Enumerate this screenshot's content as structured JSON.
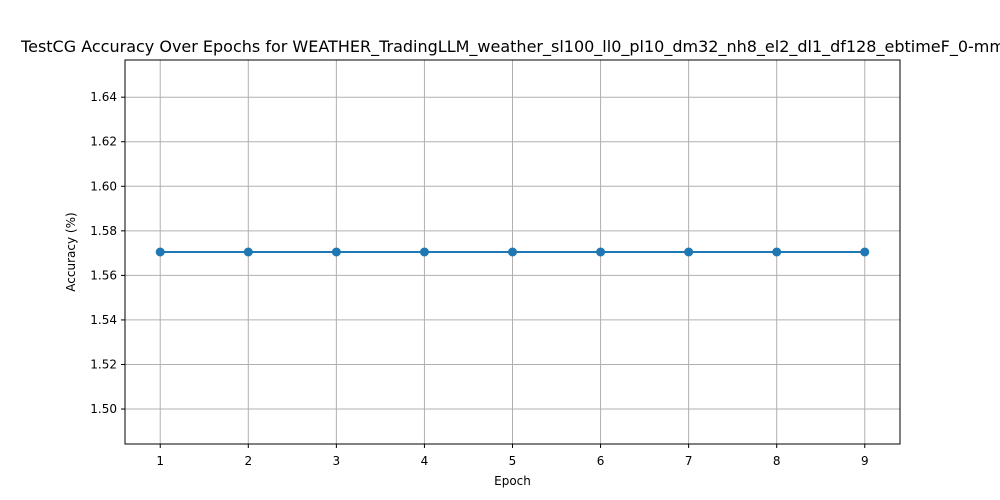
{
  "chart_data": {
    "type": "line",
    "title": "TestCG Accuracy Over Epochs for WEATHER_TradingLLM_weather_sl100_ll0_pl10_dm32_nh8_el2_dl1_df128_ebtimeF_0-mm",
    "xlabel": "Epoch",
    "ylabel": "Accuracy (%)",
    "x": [
      1,
      2,
      3,
      4,
      5,
      6,
      7,
      8,
      9
    ],
    "series": [
      {
        "values": [
          1.5705,
          1.5705,
          1.5705,
          1.5705,
          1.5705,
          1.5705,
          1.5705,
          1.5705,
          1.5705
        ],
        "color": "#1f77b4",
        "marker": "circle"
      }
    ],
    "xlim": [
      0.6,
      9.4
    ],
    "ylim": [
      1.4843,
      1.6567
    ],
    "xticks": [
      1,
      2,
      3,
      4,
      5,
      6,
      7,
      8,
      9
    ],
    "xtick_labels": [
      "1",
      "2",
      "3",
      "4",
      "5",
      "6",
      "7",
      "8",
      "9"
    ],
    "yticks": [
      1.5,
      1.52,
      1.54,
      1.56,
      1.58,
      1.6,
      1.62,
      1.64
    ],
    "ytick_labels": [
      "1.50",
      "1.52",
      "1.54",
      "1.56",
      "1.58",
      "1.60",
      "1.62",
      "1.64"
    ],
    "grid": true,
    "legend": "none"
  }
}
